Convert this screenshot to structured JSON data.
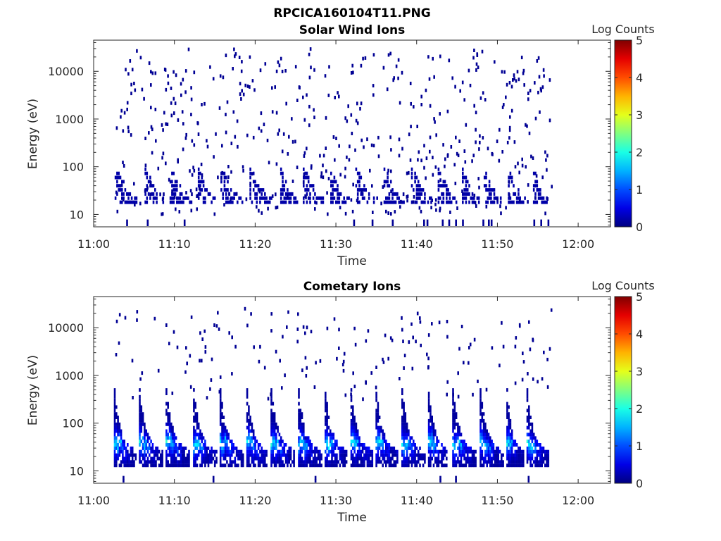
{
  "figure_title": "RPCICA160104T11.PNG",
  "chart_data": [
    {
      "type": "heatmap",
      "title": "Solar Wind Ions",
      "xlabel": "Time",
      "ylabel": "Energy (eV)",
      "x_ticks": [
        "11:00",
        "11:10",
        "11:20",
        "11:30",
        "11:40",
        "11:50",
        "12:00"
      ],
      "xlim": [
        "11:00",
        "12:04"
      ],
      "y_scale": "log",
      "y_ticks": [
        "10",
        "100",
        "1000",
        "10000"
      ],
      "ylim": [
        5.5,
        45000
      ],
      "colorbar": {
        "label": "Log Counts",
        "range": [
          0,
          5
        ],
        "ticks": [
          "0",
          "1",
          "2",
          "3",
          "4",
          "5"
        ],
        "colormap": "jet"
      },
      "data_end": "11:56:40",
      "cycle_starts_min": [
        2.6,
        6.3,
        9.4,
        12.9,
        15.7,
        19.3,
        23.1,
        25.9,
        29.3,
        32.4,
        35.9,
        39.3,
        42.6,
        45.6,
        48.3,
        51.1,
        54.4
      ],
      "low_energy_band_eV": [
        18,
        100
      ],
      "low_energy_level": 0.2,
      "scattered_noise_eV": [
        10,
        30000
      ],
      "noise_level": 0.1
    },
    {
      "type": "heatmap",
      "title": "Cometary Ions",
      "xlabel": "Time",
      "ylabel": "Energy (eV)",
      "x_ticks": [
        "11:00",
        "11:10",
        "11:20",
        "11:30",
        "11:40",
        "11:50",
        "12:00"
      ],
      "xlim": [
        "11:00",
        "12:04"
      ],
      "y_scale": "log",
      "y_ticks": [
        "10",
        "100",
        "1000",
        "10000"
      ],
      "ylim": [
        5.5,
        45000
      ],
      "colorbar": {
        "label": "Log Counts",
        "range": [
          0,
          5
        ],
        "ticks": [
          "0",
          "1",
          "2",
          "3",
          "4",
          "5"
        ],
        "colormap": "jet"
      },
      "data_end": "11:56:40",
      "cycle_starts_min": [
        2.5,
        5.6,
        8.9,
        12.3,
        15.6,
        18.9,
        21.9,
        25.3,
        28.6,
        31.8,
        34.9,
        38.1,
        41.4,
        44.4,
        47.8,
        51.1,
        53.6
      ],
      "peak_energy_eV": [
        30,
        45
      ],
      "peak_level": 1.8,
      "scattered_noise_eV": [
        300,
        25000
      ],
      "noise_level": 0.1
    }
  ]
}
